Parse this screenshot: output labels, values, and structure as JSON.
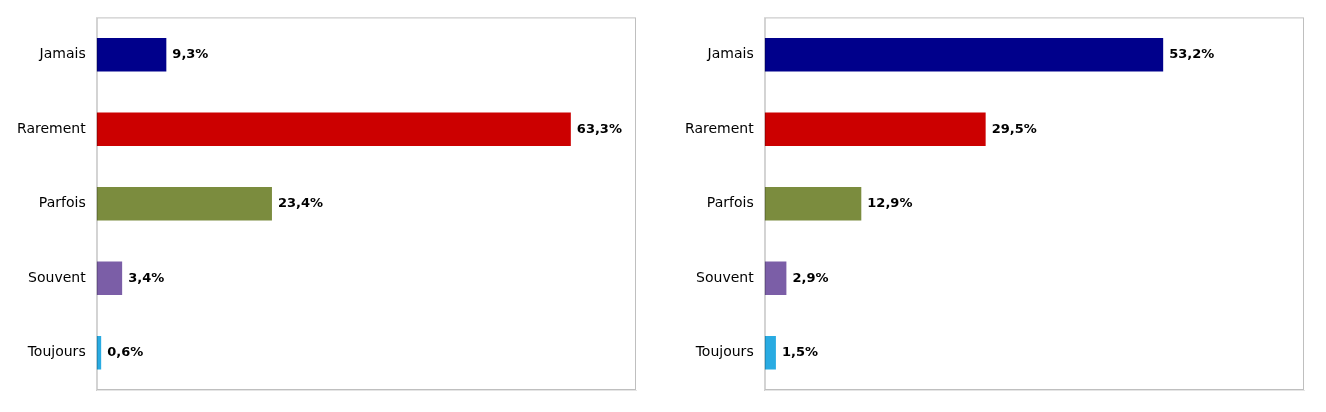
{
  "chart_data": [
    {
      "type": "bar",
      "orientation": "horizontal",
      "categories": [
        "Jamais",
        "Rarement",
        "Parfois",
        "Souvent",
        "Toujours"
      ],
      "values": [
        9.3,
        63.3,
        23.4,
        3.4,
        0.6
      ],
      "value_labels": [
        "9,3%",
        "63,3%",
        "23,4%",
        "3,4%",
        "0,6%"
      ],
      "colors": [
        "#00008B",
        "#CC0000",
        "#7B8C3E",
        "#7B5EA7",
        "#29ABE2"
      ],
      "xlim": [
        0,
        72
      ],
      "grid": false,
      "data_labels": true,
      "tick_labels": "y"
    },
    {
      "type": "bar",
      "orientation": "horizontal",
      "categories": [
        "Jamais",
        "Rarement",
        "Parfois",
        "Souvent",
        "Toujours"
      ],
      "values": [
        53.2,
        29.5,
        12.9,
        2.9,
        1.5
      ],
      "value_labels": [
        "53,2%",
        "29,5%",
        "12,9%",
        "2,9%",
        "1,5%"
      ],
      "colors": [
        "#00008B",
        "#CC0000",
        "#7B8C3E",
        "#7B5EA7",
        "#29ABE2"
      ],
      "xlim": [
        0,
        72
      ],
      "grid": false,
      "data_labels": true,
      "tick_labels": "y"
    }
  ]
}
